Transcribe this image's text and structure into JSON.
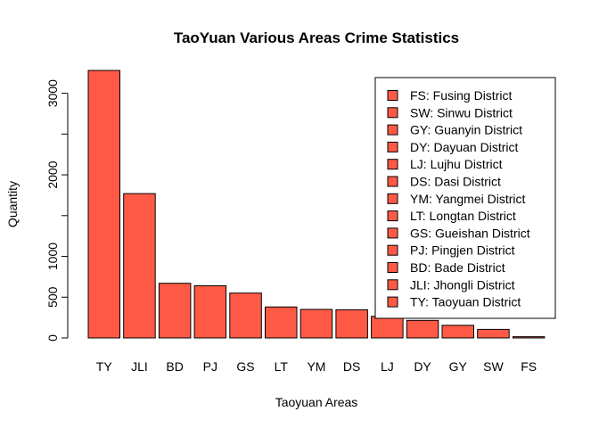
{
  "chart_data": {
    "type": "bar",
    "title": "TaoYuan Various Areas Crime Statistics",
    "xlabel": "Taoyuan Areas",
    "ylabel": "Quantity",
    "categories": [
      "TY",
      "JLI",
      "BD",
      "PJ",
      "GS",
      "LT",
      "YM",
      "DS",
      "LJ",
      "DY",
      "GY",
      "SW",
      "FS"
    ],
    "values": [
      3280,
      1770,
      670,
      640,
      550,
      380,
      350,
      345,
      265,
      215,
      155,
      105,
      15
    ],
    "yticks": [
      0,
      500,
      1000,
      2000,
      3000
    ],
    "ylim": [
      0,
      3280
    ],
    "bar_color": "#FF5A45",
    "grid": false,
    "legend_position": "top-right",
    "legend": [
      "FS: Fusing District",
      "SW: Sinwu District",
      "GY: Guanyin District",
      "DY: Dayuan District",
      "LJ: Lujhu District",
      "DS: Dasi District",
      "YM: Yangmei District",
      "LT: Longtan District",
      "GS: Gueishan District",
      "PJ: Pingjen District",
      "BD: Bade District",
      "JLI: Jhongli District",
      "TY: Taoyuan District"
    ]
  }
}
